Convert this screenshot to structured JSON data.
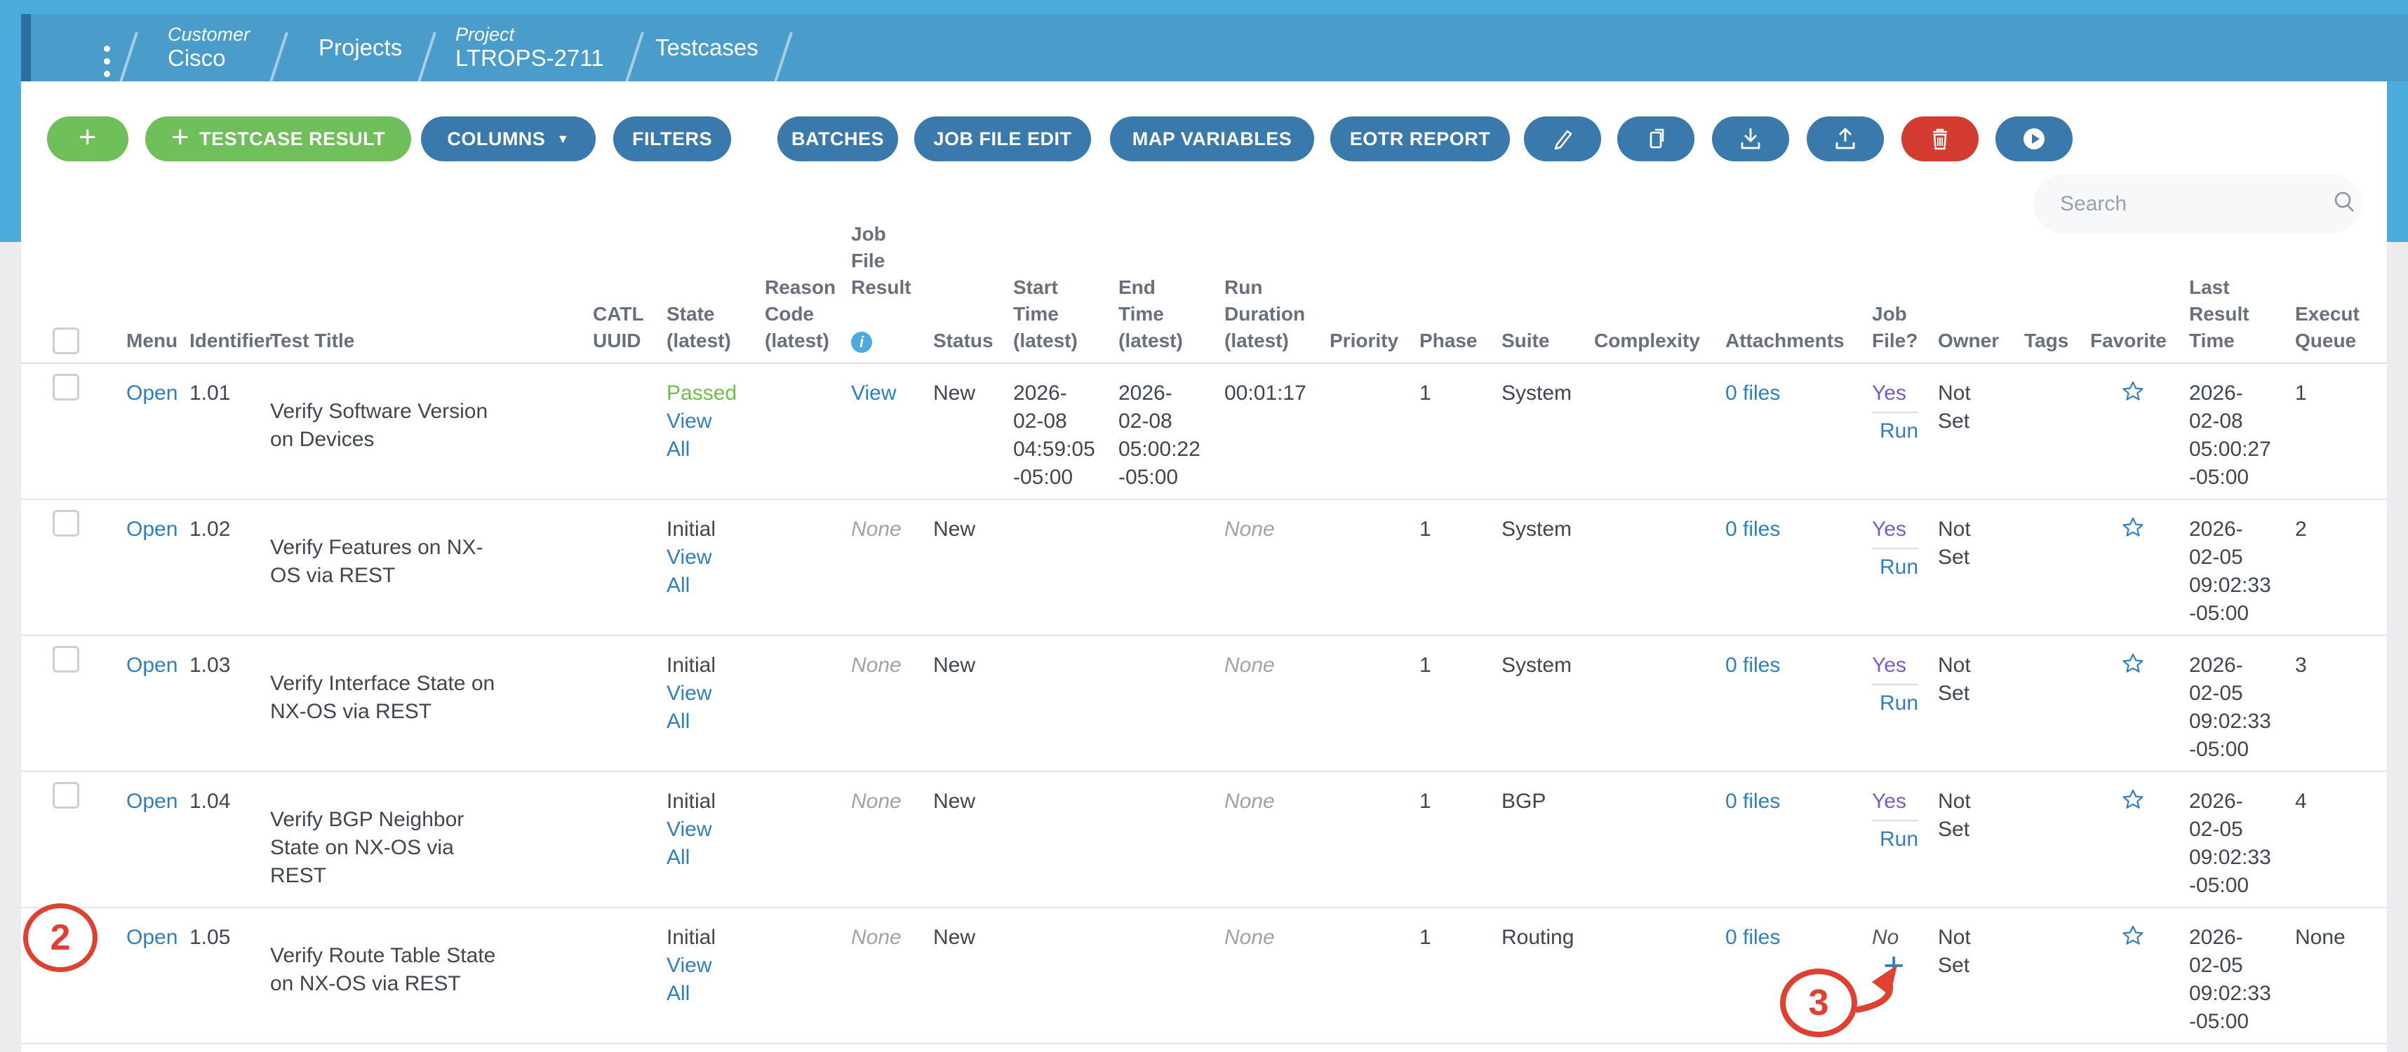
{
  "breadcrumb": {
    "items": [
      {
        "label": "Customer",
        "value": "Cisco"
      },
      {
        "label": "",
        "value": "Projects"
      },
      {
        "label": "Project",
        "value": "LTROPS-2711"
      },
      {
        "label": "",
        "value": "Testcases"
      }
    ]
  },
  "toolbar": {
    "add": "+",
    "testcase_result": "TESTCASE RESULT",
    "columns": "COLUMNS",
    "columns_arrow": "▼",
    "filters": "FILTERS",
    "batches": "BATCHES",
    "job_file_edit": "JOB FILE EDIT",
    "map_variables": "MAP VARIABLES",
    "eotr_report": "EOTR REPORT",
    "icon_buttons": [
      "edit",
      "copy",
      "download",
      "upload",
      "delete",
      "run"
    ]
  },
  "search": {
    "placeholder": "Search"
  },
  "table": {
    "headers": {
      "menu": "Menu",
      "identifier": "Identifier",
      "test_title": "Test Title",
      "catl_uuid": "CATL\nUUID",
      "state": "State\n(latest)",
      "reason_code": "Reason\nCode\n(latest)",
      "job_file_result": "Job\nFile\nResult",
      "status": "Status",
      "start_time": "Start\nTime\n(latest)",
      "end_time": "End\nTime\n(latest)",
      "run_duration": "Run\nDuration\n(latest)",
      "priority": "Priority",
      "phase": "Phase",
      "suite": "Suite",
      "complexity": "Complexity",
      "attachments": "Attachments",
      "job_file": "Job\nFile?",
      "owner": "Owner",
      "tags": "Tags",
      "favorite": "Favorite",
      "last_result_time": "Last\nResult\nTime",
      "execution_queue": "Execut\nQueue"
    },
    "labels": {
      "view": "View",
      "all": "All"
    },
    "rows": [
      {
        "has_checkbox": true,
        "menu": "Open",
        "identifier": "1.01",
        "title": "Verify Software Version\non Devices",
        "state": "Passed",
        "state_passed": true,
        "reason_code": "",
        "job_file_result": "View",
        "status": "New",
        "start_time": "2026-\n02-08\n04:59:05\n-05:00",
        "end_time": "2026-\n02-08\n05:00:22\n-05:00",
        "run_duration": "00:01:17",
        "priority": "",
        "phase": "1",
        "suite": "System",
        "complexity": "",
        "attachments": "0 files",
        "job_file": {
          "primary": "Yes",
          "secondary": "Run",
          "add": false
        },
        "owner": "Not\nSet",
        "tags": "",
        "favorite": "star-outline",
        "last_result_time": "2026-\n02-08\n05:00:27\n-05:00",
        "execution_queue": "1"
      },
      {
        "has_checkbox": true,
        "menu": "Open",
        "identifier": "1.02",
        "title": "Verify Features on NX-\nOS via REST",
        "state": "Initial",
        "state_passed": false,
        "reason_code": "",
        "job_file_result": "None",
        "status": "New",
        "start_time": "",
        "end_time": "",
        "run_duration": "None",
        "priority": "",
        "phase": "1",
        "suite": "System",
        "complexity": "",
        "attachments": "0 files",
        "job_file": {
          "primary": "Yes",
          "secondary": "Run",
          "add": false
        },
        "owner": "Not\nSet",
        "tags": "",
        "favorite": "star-outline",
        "last_result_time": "2026-\n02-05\n09:02:33\n-05:00",
        "execution_queue": "2"
      },
      {
        "has_checkbox": true,
        "menu": "Open",
        "identifier": "1.03",
        "title": "Verify Interface State on\nNX-OS via REST",
        "state": "Initial",
        "state_passed": false,
        "reason_code": "",
        "job_file_result": "None",
        "status": "New",
        "start_time": "",
        "end_time": "",
        "run_duration": "None",
        "priority": "",
        "phase": "1",
        "suite": "System",
        "complexity": "",
        "attachments": "0 files",
        "job_file": {
          "primary": "Yes",
          "secondary": "Run",
          "add": false
        },
        "owner": "Not\nSet",
        "tags": "",
        "favorite": "star-outline",
        "last_result_time": "2026-\n02-05\n09:02:33\n-05:00",
        "execution_queue": "3"
      },
      {
        "has_checkbox": true,
        "menu": "Open",
        "identifier": "1.04",
        "title": "Verify BGP Neighbor\nState on NX-OS via\nREST",
        "state": "Initial",
        "state_passed": false,
        "reason_code": "",
        "job_file_result": "None",
        "status": "New",
        "start_time": "",
        "end_time": "",
        "run_duration": "None",
        "priority": "",
        "phase": "1",
        "suite": "BGP",
        "complexity": "",
        "attachments": "0 files",
        "job_file": {
          "primary": "Yes",
          "secondary": "Run",
          "add": false
        },
        "owner": "Not\nSet",
        "tags": "",
        "favorite": "star-outline",
        "last_result_time": "2026-\n02-05\n09:02:33\n-05:00",
        "execution_queue": "4"
      },
      {
        "has_checkbox": false,
        "menu": "Open",
        "identifier": "1.05",
        "title": "Verify Route Table State\non NX-OS via REST",
        "state": "Initial",
        "state_passed": false,
        "reason_code": "",
        "job_file_result": "None",
        "status": "New",
        "start_time": "",
        "end_time": "",
        "run_duration": "None",
        "priority": "",
        "phase": "1",
        "suite": "Routing",
        "complexity": "",
        "attachments": "0 files",
        "job_file": {
          "primary": "No",
          "secondary": "",
          "add": true
        },
        "owner": "Not\nSet",
        "tags": "",
        "favorite": "star-outline",
        "last_result_time": "2026-\n02-05\n09:02:33\n-05:00",
        "execution_queue": "None"
      }
    ]
  },
  "annotations": {
    "step2": "2",
    "step3": "3"
  },
  "colors": {
    "top_blue": "#4CACDD",
    "band_blue": "#4A9CCB",
    "band_accent": "#2D6E9E",
    "green_button": "#6FBE5A",
    "blue_button": "#3A79AB",
    "red_button": "#D23B2E",
    "link": "#2E7FC1",
    "passed_green": "#6CBE4C",
    "visited_purple": "#7A5CC5",
    "annotation_red": "#DF4030"
  }
}
